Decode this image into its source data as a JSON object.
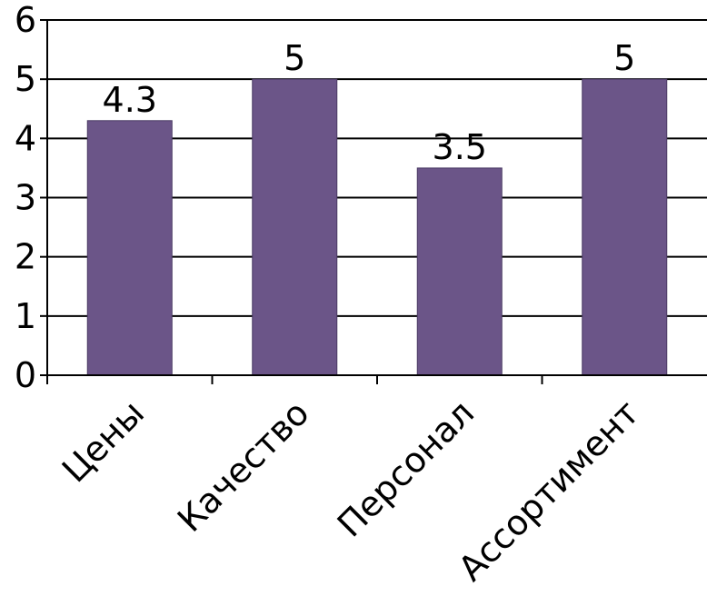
{
  "chart_data": {
    "type": "bar",
    "title": "",
    "xlabel": "",
    "ylabel": "",
    "categories": [
      "Цены",
      "Качество",
      "Персонал",
      "Ассортимент"
    ],
    "values": [
      4.3,
      5,
      3.5,
      5
    ],
    "data_labels": [
      "4.3",
      "5",
      "3.5",
      "5"
    ],
    "ylim": [
      0,
      6
    ],
    "yticks": [
      0,
      1,
      2,
      3,
      4,
      5,
      6
    ],
    "ytick_labels": [
      "0",
      "1",
      "2",
      "3",
      "4",
      "5",
      "6"
    ],
    "grid": true,
    "legend": "none",
    "colors": {
      "bar": "#6b5588",
      "bar_edge": "#4a3a63",
      "grid": "#000000",
      "axis": "#000000"
    }
  }
}
